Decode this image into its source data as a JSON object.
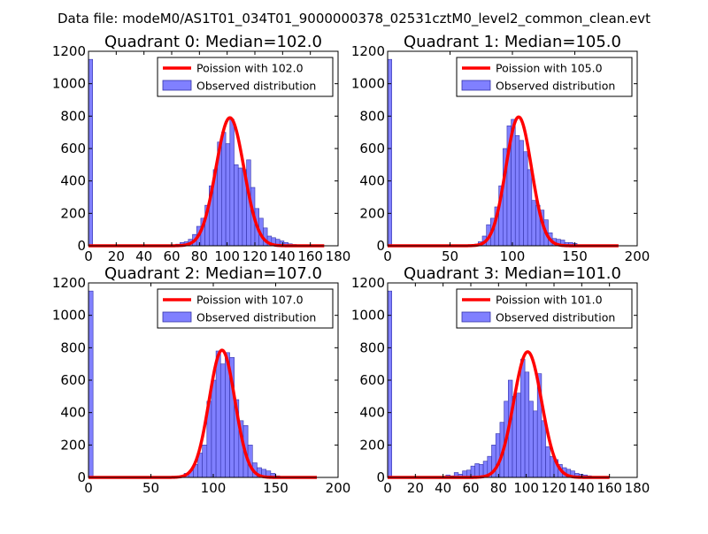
{
  "figure": {
    "suptitle": "Data file: modeM0/AS1T01_034T01_9000000378_02531cztM0_level2_common_clean.evt"
  },
  "colors": {
    "bar_fill": "#8080ff",
    "bar_edge": "#3333aa",
    "fit_line": "#ff0000",
    "axes": "#000000",
    "background": "#ffffff"
  },
  "chart_data": [
    {
      "type": "bar",
      "title": "Quadrant 0: Median=102.0",
      "xlim": [
        0,
        180
      ],
      "ylim": [
        0,
        1200
      ],
      "xticks": [
        0,
        20,
        40,
        60,
        80,
        100,
        120,
        140,
        160,
        180
      ],
      "yticks": [
        0,
        200,
        400,
        600,
        800,
        1000,
        1200
      ],
      "legend": {
        "position": "top-right",
        "entries": [
          "Poission with 102.0",
          "Observed distribution"
        ]
      },
      "histogram": {
        "bin_width": 3,
        "bin_starts": [
          0,
          60,
          63,
          66,
          69,
          72,
          75,
          78,
          81,
          84,
          87,
          90,
          93,
          96,
          99,
          102,
          105,
          108,
          111,
          114,
          117,
          120,
          123,
          126,
          129,
          132,
          135,
          138,
          141,
          144,
          147,
          150,
          153
        ],
        "counts": [
          1150,
          5,
          10,
          20,
          25,
          40,
          70,
          120,
          170,
          250,
          370,
          470,
          640,
          700,
          630,
          780,
          500,
          480,
          470,
          530,
          360,
          230,
          170,
          110,
          60,
          50,
          40,
          30,
          20,
          12,
          8,
          5,
          3
        ]
      },
      "fit": {
        "label": "Poission with 102.0",
        "x_range": [
          0,
          170
        ],
        "peak": 790,
        "center": 102,
        "sigma": 10.1
      }
    },
    {
      "type": "bar",
      "title": "Quadrant 1: Median=105.0",
      "xlim": [
        0,
        200
      ],
      "ylim": [
        0,
        1200
      ],
      "xticks": [
        0,
        50,
        100,
        150,
        200
      ],
      "yticks": [
        0,
        200,
        400,
        600,
        800,
        1000,
        1200
      ],
      "legend": {
        "position": "top-right",
        "entries": [
          "Poission with 105.0",
          "Observed distribution"
        ]
      },
      "histogram": {
        "bin_width": 3.3,
        "bin_starts": [
          0,
          66,
          69.3,
          72.6,
          75.9,
          79.2,
          82.5,
          85.8,
          89.1,
          92.4,
          95.7,
          99,
          102.3,
          105.6,
          108.9,
          112.2,
          115.5,
          118.8,
          122.1,
          125.4,
          128.7,
          132,
          135.3,
          138.6,
          141.9,
          145.2,
          148.5,
          151.8
        ],
        "counts": [
          1150,
          5,
          10,
          25,
          60,
          130,
          170,
          240,
          370,
          600,
          740,
          780,
          680,
          650,
          580,
          470,
          280,
          250,
          220,
          160,
          80,
          45,
          40,
          35,
          20,
          20,
          15,
          5
        ]
      },
      "fit": {
        "label": "Poission with 105.0",
        "x_range": [
          0,
          185
        ],
        "peak": 795,
        "center": 105,
        "sigma": 10.25
      }
    },
    {
      "type": "bar",
      "title": "Quadrant 2: Median=107.0",
      "xlim": [
        0,
        200
      ],
      "ylim": [
        0,
        1200
      ],
      "xticks": [
        0,
        50,
        100,
        150,
        200
      ],
      "yticks": [
        0,
        200,
        400,
        600,
        800,
        1000,
        1200
      ],
      "legend": {
        "position": "top-right",
        "entries": [
          "Poission with 107.0",
          "Observed distribution"
        ]
      },
      "histogram": {
        "bin_width": 3.65,
        "bin_starts": [
          0,
          73,
          76.65,
          80.3,
          83.95,
          87.6,
          91.25,
          94.9,
          98.55,
          102.2,
          105.85,
          109.5,
          113.15,
          116.8,
          120.45,
          124.1,
          127.75,
          131.4,
          135.05,
          138.7,
          142.35,
          146,
          149.65
        ],
        "counts": [
          1150,
          10,
          25,
          40,
          80,
          150,
          200,
          470,
          600,
          780,
          700,
          770,
          740,
          480,
          350,
          320,
          200,
          90,
          60,
          50,
          40,
          25,
          10
        ]
      },
      "fit": {
        "label": "Poission with 107.0",
        "x_range": [
          0,
          183
        ],
        "peak": 785,
        "center": 107,
        "sigma": 10.35
      }
    },
    {
      "type": "bar",
      "title": "Quadrant 3: Median=101.0",
      "xlim": [
        0,
        180
      ],
      "ylim": [
        0,
        1200
      ],
      "xticks": [
        0,
        20,
        40,
        60,
        80,
        100,
        120,
        140,
        160,
        180
      ],
      "yticks": [
        0,
        200,
        400,
        600,
        800,
        1000,
        1200
      ],
      "legend": {
        "position": "top-right",
        "entries": [
          "Poission with 101.0",
          "Observed distribution"
        ]
      },
      "histogram": {
        "bin_width": 3,
        "bin_starts": [
          0,
          39,
          42,
          45,
          48,
          51,
          54,
          57,
          60,
          63,
          66,
          69,
          72,
          75,
          78,
          81,
          84,
          87,
          90,
          93,
          96,
          99,
          102,
          105,
          108,
          111,
          114,
          117,
          120,
          123,
          126,
          129,
          132,
          135,
          138,
          141,
          144,
          147
        ],
        "counts": [
          1150,
          5,
          15,
          10,
          30,
          20,
          40,
          45,
          70,
          85,
          80,
          100,
          130,
          200,
          270,
          340,
          470,
          600,
          500,
          520,
          730,
          650,
          470,
          410,
          640,
          350,
          190,
          130,
          110,
          80,
          60,
          50,
          40,
          25,
          20,
          15,
          10,
          5
        ]
      },
      "fit": {
        "label": "Poission with 101.0",
        "x_range": [
          0,
          160
        ],
        "peak": 775,
        "center": 101,
        "sigma": 10.05
      }
    }
  ]
}
